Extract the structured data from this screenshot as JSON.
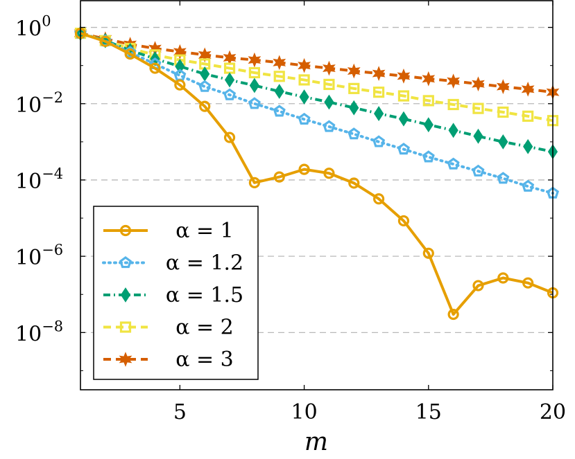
{
  "chart_data": {
    "type": "line",
    "title": "",
    "xlabel": "m",
    "ylabel": "",
    "xlim": [
      1,
      20
    ],
    "ylim_log10": [
      -9.5,
      0.7
    ],
    "yscale": "log",
    "grid": "horizontal dashed",
    "legend_position": "lower-left",
    "x_ticks": [
      {
        "value": 5,
        "label": "5"
      },
      {
        "value": 10,
        "label": "10"
      },
      {
        "value": 15,
        "label": "15"
      },
      {
        "value": 20,
        "label": "20"
      }
    ],
    "y_ticks": [
      {
        "value_log10": 0,
        "base": "10",
        "exp": "0"
      },
      {
        "value_log10": -2,
        "base": "10",
        "exp": "−2"
      },
      {
        "value_log10": -4,
        "base": "10",
        "exp": "−4"
      },
      {
        "value_log10": -6,
        "base": "10",
        "exp": "−6"
      },
      {
        "value_log10": -8,
        "base": "10",
        "exp": "−8"
      }
    ],
    "x": [
      1,
      2,
      3,
      4,
      5,
      6,
      7,
      8,
      9,
      10,
      11,
      12,
      13,
      14,
      15,
      16,
      17,
      18,
      19,
      20
    ],
    "series": [
      {
        "name": "α = 1",
        "color": "#E69F00",
        "marker": "circle",
        "line": "solid",
        "values": [
          0.7,
          0.43,
          0.2,
          0.085,
          0.031,
          0.0085,
          0.0013,
          8.5e-05,
          0.00012,
          0.00019,
          0.00015,
          8.3e-05,
          3.2e-05,
          8.5e-06,
          1.2e-06,
          3e-08,
          1.7e-07,
          2.7e-07,
          2e-07,
          1.1e-07
        ]
      },
      {
        "name": "α = 1.2",
        "color": "#56B4E9",
        "marker": "pentagon",
        "line": "dotted",
        "values": [
          0.7,
          0.44,
          0.22,
          0.11,
          0.055,
          0.028,
          0.017,
          0.01,
          0.0063,
          0.0039,
          0.0025,
          0.0016,
          0.001,
          0.00064,
          0.0004,
          0.00026,
          0.00017,
          0.00011,
          6.8e-05,
          4.5e-05
        ]
      },
      {
        "name": "α = 1.5",
        "color": "#009E73",
        "marker": "diamond",
        "line": "dashdot",
        "values": [
          0.7,
          0.45,
          0.25,
          0.15,
          0.095,
          0.06,
          0.042,
          0.03,
          0.021,
          0.015,
          0.011,
          0.0078,
          0.0055,
          0.004,
          0.0028,
          0.002,
          0.0014,
          0.001,
          0.00075,
          0.00055
        ]
      },
      {
        "name": "α = 2",
        "color": "#F0E442",
        "marker": "square",
        "line": "dashed",
        "values": [
          0.7,
          0.45,
          0.28,
          0.19,
          0.14,
          0.11,
          0.085,
          0.065,
          0.052,
          0.042,
          0.032,
          0.025,
          0.02,
          0.016,
          0.012,
          0.0095,
          0.0075,
          0.006,
          0.0047,
          0.0036
        ]
      },
      {
        "name": "α = 3",
        "color": "#D55E00",
        "marker": "star",
        "line": "dashed",
        "values": [
          0.7,
          0.5,
          0.36,
          0.28,
          0.23,
          0.19,
          0.16,
          0.14,
          0.12,
          0.1,
          0.085,
          0.072,
          0.062,
          0.053,
          0.045,
          0.039,
          0.033,
          0.028,
          0.024,
          0.02
        ]
      }
    ]
  }
}
